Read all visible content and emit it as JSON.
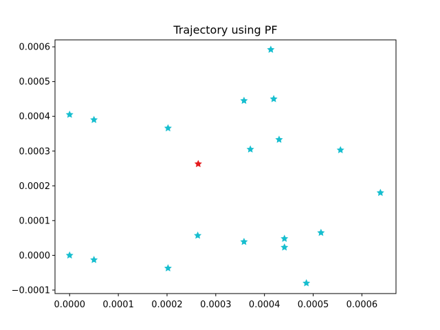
{
  "chart_data": {
    "type": "scatter",
    "title": "Trajectory using PF",
    "xlabel": "",
    "ylabel": "",
    "xlim": [
      -3e-05,
      0.00067
    ],
    "ylim": [
      -0.00011,
      0.00062
    ],
    "grid": false,
    "x_ticks": [
      {
        "value": 0.0,
        "label": "0.0000"
      },
      {
        "value": 0.0001,
        "label": "0.0001"
      },
      {
        "value": 0.0002,
        "label": "0.0002"
      },
      {
        "value": 0.0003,
        "label": "0.0003"
      },
      {
        "value": 0.0004,
        "label": "0.0004"
      },
      {
        "value": 0.0005,
        "label": "0.0005"
      },
      {
        "value": 0.0006,
        "label": "0.0006"
      }
    ],
    "y_ticks": [
      {
        "value": -0.0001,
        "label": "−0.0001"
      },
      {
        "value": 0.0,
        "label": "0.0000"
      },
      {
        "value": 0.0001,
        "label": "0.0001"
      },
      {
        "value": 0.0002,
        "label": "0.0002"
      },
      {
        "value": 0.0003,
        "label": "0.0003"
      },
      {
        "value": 0.0004,
        "label": "0.0004"
      },
      {
        "value": 0.0005,
        "label": "0.0005"
      },
      {
        "value": 0.0006,
        "label": "0.0006"
      }
    ],
    "series": [
      {
        "color": "#17becf",
        "marker": "star",
        "points": [
          {
            "x": 0.0,
            "y": 0.000405
          },
          {
            "x": 5e-05,
            "y": 0.00039
          },
          {
            "x": 0.000202,
            "y": 0.000366
          },
          {
            "x": 0.000358,
            "y": 0.000445
          },
          {
            "x": 0.000413,
            "y": 0.000592
          },
          {
            "x": 0.000419,
            "y": 0.00045
          },
          {
            "x": 0.000371,
            "y": 0.000305
          },
          {
            "x": 0.00043,
            "y": 0.000333
          },
          {
            "x": 0.000556,
            "y": 0.000303
          },
          {
            "x": 0.000638,
            "y": 0.00018
          },
          {
            "x": 0.000263,
            "y": 5.7e-05
          },
          {
            "x": 0.000358,
            "y": 3.9e-05
          },
          {
            "x": 0.000441,
            "y": 4.8e-05
          },
          {
            "x": 0.000441,
            "y": 2.3e-05
          },
          {
            "x": 0.000516,
            "y": 6.5e-05
          },
          {
            "x": 0.000486,
            "y": -8e-05
          },
          {
            "x": 0.0,
            "y": 0.0
          },
          {
            "x": 5e-05,
            "y": -1.3e-05
          },
          {
            "x": 0.000202,
            "y": -3.7e-05
          }
        ]
      },
      {
        "color": "#e41a1c",
        "marker": "star",
        "points": [
          {
            "x": 0.000264,
            "y": 0.000263
          }
        ]
      }
    ]
  }
}
